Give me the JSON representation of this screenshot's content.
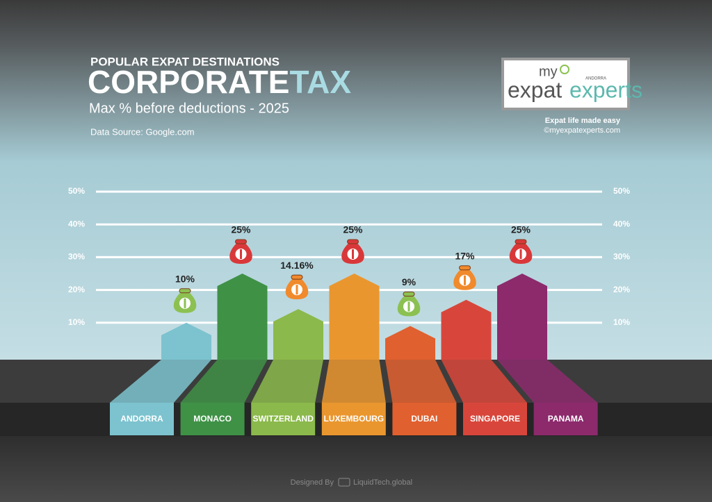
{
  "header": {
    "kicker": "POPULAR EXPAT DESTINATIONS",
    "title_main": "CORPORATE",
    "title_accent": "TAX",
    "subtitle": "Max % before deductions - 2025",
    "source": "Data Source: Google.com"
  },
  "logo": {
    "my": "my",
    "region": "ANDORRA",
    "expat": "expat",
    "experts": "experts",
    "tagline": "Expat life made easy",
    "site": "©myexpatexperts.com"
  },
  "footer": {
    "designed_by": "Designed By",
    "designer": "LiquidTech.global"
  },
  "chart_data": {
    "type": "bar",
    "categories": [
      "ANDORRA",
      "MONACO",
      "SWITZERLAND",
      "LUXEMBOURG",
      "DUBAI",
      "SINGAPORE",
      "PANAMA"
    ],
    "values": [
      10,
      25,
      14.16,
      25,
      9,
      17,
      25
    ],
    "value_labels": [
      "10%",
      "25%",
      "14.16%",
      "25%",
      "9%",
      "17%",
      "25%"
    ],
    "colors": [
      "#7cc3cf",
      "#3f9146",
      "#8bb94b",
      "#ea962f",
      "#e0602f",
      "#d8463b",
      "#8c2a6c"
    ],
    "bag_colors": [
      "#8cc152",
      "#d9383a",
      "#f08a2c",
      "#d9383a",
      "#8cc152",
      "#f08a2c",
      "#d9383a"
    ],
    "ylim": [
      0,
      50
    ],
    "yticks": [
      {
        "value": 10,
        "label": "10%"
      },
      {
        "value": 20,
        "label": "20%"
      },
      {
        "value": 30,
        "label": "30%"
      },
      {
        "value": 40,
        "label": "40%"
      },
      {
        "value": 50,
        "label": "50%"
      }
    ],
    "grid": true
  }
}
